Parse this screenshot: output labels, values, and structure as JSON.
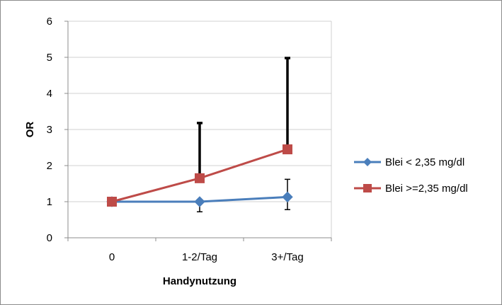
{
  "chart_data": {
    "type": "line",
    "categories": [
      "0",
      "1-2/Tag",
      "3+/Tag"
    ],
    "series": [
      {
        "name": "Blei < 2,35 mg/dl",
        "values": [
          1.0,
          1.0,
          1.13
        ],
        "error_low": [
          1.0,
          0.72,
          0.78
        ],
        "error_high": [
          1.0,
          1.0,
          1.62
        ],
        "color": "#4a7ebb",
        "marker": "diamond"
      },
      {
        "name": "Blei >=2,35 mg/dl",
        "values": [
          1.0,
          1.65,
          2.45
        ],
        "error_low": [
          1.0,
          1.65,
          2.45
        ],
        "error_high": [
          1.0,
          3.18,
          4.98
        ],
        "color": "#be4b48",
        "marker": "square"
      }
    ],
    "xlabel": "Handynutzung",
    "ylabel": "OR",
    "ylim": [
      0,
      6
    ],
    "yticks": [
      "0",
      "1",
      "2",
      "3",
      "4",
      "5",
      "6"
    ],
    "grid": true,
    "legend": "right"
  }
}
